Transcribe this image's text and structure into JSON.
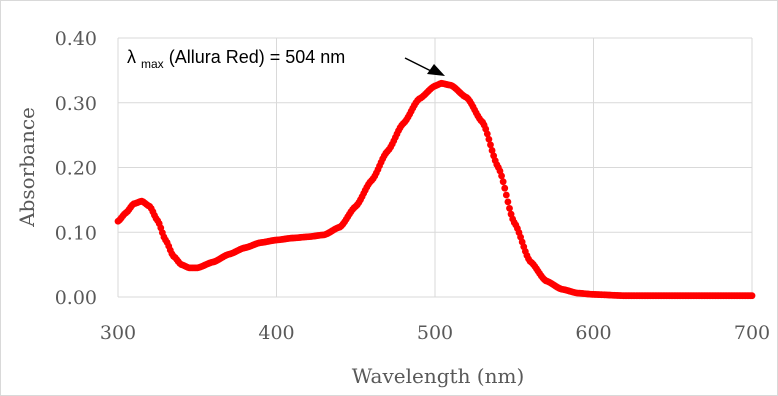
{
  "chart_data": {
    "type": "scatter",
    "title": "",
    "xlabel": "Wavelength (nm)",
    "ylabel": "Absorbance",
    "xlim": [
      300,
      700
    ],
    "ylim": [
      0,
      0.4
    ],
    "x_ticks": [
      300,
      400,
      500,
      600,
      700
    ],
    "y_ticks": [
      "0.00",
      "0.10",
      "0.20",
      "0.30",
      "0.40"
    ],
    "grid": true,
    "legend": "none",
    "series_color": "#ff0000",
    "annotation": {
      "symbol": "λ",
      "subscript": "max",
      "text": " (Allura Red) = 504 nm",
      "x": 504,
      "y": 0.33
    },
    "keypoints": {
      "x": [
        300,
        305,
        310,
        315,
        320,
        325,
        330,
        335,
        340,
        345,
        350,
        360,
        370,
        380,
        390,
        400,
        410,
        420,
        430,
        440,
        450,
        460,
        470,
        480,
        490,
        500,
        504,
        510,
        520,
        530,
        540,
        550,
        560,
        570,
        580,
        590,
        600,
        620,
        650,
        700
      ],
      "y": [
        0.117,
        0.13,
        0.144,
        0.148,
        0.14,
        0.118,
        0.088,
        0.063,
        0.05,
        0.045,
        0.045,
        0.054,
        0.066,
        0.076,
        0.084,
        0.088,
        0.091,
        0.093,
        0.096,
        0.108,
        0.14,
        0.18,
        0.225,
        0.268,
        0.306,
        0.326,
        0.33,
        0.327,
        0.308,
        0.27,
        0.2,
        0.115,
        0.055,
        0.025,
        0.012,
        0.006,
        0.004,
        0.002,
        0.002,
        0.002
      ]
    }
  }
}
